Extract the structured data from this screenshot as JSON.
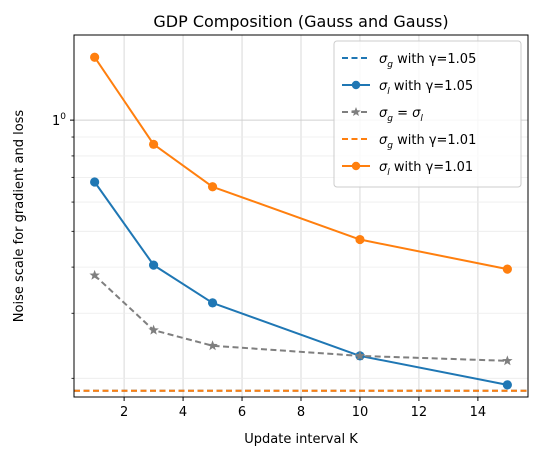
{
  "chart_data": {
    "type": "line",
    "title": "GDP Composition (Gauss and Gauss)",
    "xlabel": "Update interval K",
    "ylabel": "Noise scale for gradient and loss",
    "x_scale": "linear",
    "y_scale": "log",
    "xlim": [
      0.3,
      15.7
    ],
    "ylim": [
      1.78,
      17.0
    ],
    "x_ticks": [
      2,
      4,
      6,
      8,
      10,
      12,
      14
    ],
    "y_major_ticks": [
      10
    ],
    "y_major_tick_labels": [
      "10"
    ],
    "y_minor_ticks": [
      2,
      3,
      4,
      5,
      6,
      7,
      8,
      9
    ],
    "grid": true,
    "legend_position": "top-right",
    "series": [
      {
        "name": "σ_g with γ=1.05",
        "label_parts": [
          "σ",
          "g",
          " with γ=1.05"
        ],
        "kind": "hline",
        "y": 1.85,
        "color": "#1f77b4",
        "style": "dashed",
        "marker": "none"
      },
      {
        "name": "σ_l with γ=1.05",
        "label_parts": [
          "σ",
          "l",
          " with γ=1.05"
        ],
        "kind": "line",
        "x": [
          1,
          3,
          5,
          10,
          15
        ],
        "y": [
          6.8,
          4.05,
          3.2,
          2.3,
          1.92
        ],
        "color": "#1f77b4",
        "style": "solid",
        "marker": "circle"
      },
      {
        "name": "σ_g = σ_l",
        "label_parts": [
          "σ",
          "g",
          " = ",
          "σ",
          "l"
        ],
        "kind": "line",
        "x": [
          1,
          3,
          5,
          10,
          15
        ],
        "y": [
          3.8,
          2.7,
          2.45,
          2.3,
          2.23
        ],
        "color": "#7f7f7f",
        "style": "dashed",
        "marker": "star"
      },
      {
        "name": "σ_g with γ=1.01",
        "label_parts": [
          "σ",
          "g",
          " with γ=1.01"
        ],
        "kind": "hline",
        "y": 1.85,
        "color": "#ff7f0e",
        "style": "dashed",
        "marker": "none"
      },
      {
        "name": "σ_l with γ=1.01",
        "label_parts": [
          "σ",
          "l",
          " with γ=1.01"
        ],
        "kind": "line",
        "x": [
          1,
          3,
          5,
          10,
          15
        ],
        "y": [
          14.8,
          8.6,
          6.6,
          4.75,
          3.95
        ],
        "color": "#ff7f0e",
        "style": "solid",
        "marker": "circle"
      }
    ]
  }
}
